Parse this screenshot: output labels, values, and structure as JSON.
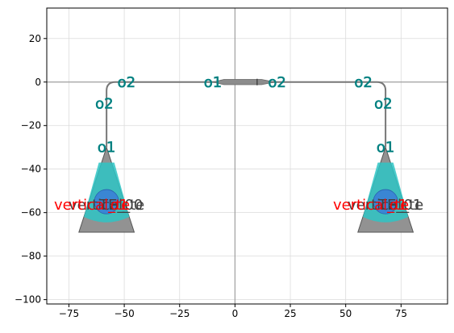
{
  "chart_data": {
    "type": "layout",
    "title": "",
    "xlabel": "",
    "ylabel": "",
    "xlim": [
      -85,
      96
    ],
    "ylim": [
      -102,
      34
    ],
    "grid": true,
    "x_ticks": [
      -75,
      -50,
      -25,
      0,
      25,
      50,
      75
    ],
    "y_ticks": [
      20,
      0,
      -20,
      -40,
      -60,
      -80,
      -100
    ],
    "x_tick_labels": [
      "−75",
      "−50",
      "−25",
      "0",
      "25",
      "50",
      "75"
    ],
    "y_tick_labels": [
      "20",
      "0",
      "−20",
      "−40",
      "−60",
      "−80",
      "−100"
    ],
    "colors": {
      "waveguide": "#777777",
      "coupler_body": "#8c8c8c",
      "coupler_overlay": "#2ec4c4",
      "coupler_circle": "#3a7fd6",
      "port_label": "#008080",
      "name_label": "#ff0000",
      "text_label": "#404040",
      "axis_line": "#a0a0a0",
      "grid": "#dcdcdc"
    },
    "route_path": [
      [
        -58,
        -30
      ],
      [
        -58,
        -4
      ],
      [
        -54,
        0
      ],
      [
        -2,
        0
      ],
      [
        2,
        0
      ],
      [
        64,
        0
      ],
      [
        68,
        -4
      ],
      [
        68,
        -30
      ]
    ],
    "couplers": [
      {
        "name": "vertical_te",
        "port_name": "o1",
        "text": "vertical_te",
        "label": "TE_00",
        "apex": [
          -58,
          -30
        ],
        "width": 25,
        "bottom": -69,
        "circle_center": [
          -58,
          -55
        ],
        "circle_radius": 5.5
      },
      {
        "name": "vertical_te",
        "port_name": "o1",
        "text": "vertical_te",
        "label": "TE_01",
        "apex": [
          68,
          -30
        ],
        "width": 25,
        "bottom": -69,
        "circle_center": [
          68,
          -55
        ],
        "circle_radius": 5.5
      }
    ],
    "taper": {
      "x": [
        -5,
        10
      ],
      "y": 0,
      "mid_mark_x": 10
    },
    "port_labels": [
      {
        "text": "o1",
        "x": -58,
        "y": -30
      },
      {
        "text": "o2",
        "x": -59,
        "y": -10
      },
      {
        "text": "o2",
        "x": -49,
        "y": 0
      },
      {
        "text": "o1",
        "x": -10,
        "y": 0
      },
      {
        "text": "o2",
        "x": 19,
        "y": 0
      },
      {
        "text": "o2",
        "x": 58,
        "y": 0
      },
      {
        "text": "o2",
        "x": 67,
        "y": -10
      },
      {
        "text": "o1",
        "x": 68,
        "y": -30
      }
    ]
  }
}
